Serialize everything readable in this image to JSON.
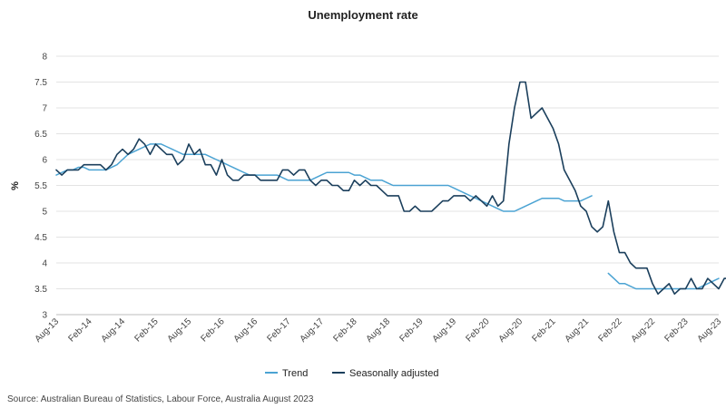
{
  "chart_data": {
    "type": "line",
    "title": "Unemployment rate",
    "ylabel": "%",
    "xlabel": "",
    "ylim": [
      3,
      8
    ],
    "yticks": [
      3,
      3.5,
      4,
      4.5,
      5,
      5.5,
      6,
      6.5,
      7,
      7.5,
      8
    ],
    "ytick_labels": [
      "3",
      "3.5",
      "4",
      "4.5",
      "5",
      "5.5",
      "6",
      "6.5",
      "7",
      "7.5",
      "8"
    ],
    "x_start": "Aug-13",
    "x_end": "Aug-23",
    "xtick_labels": [
      "Aug-13",
      "Feb-14",
      "Aug-14",
      "Feb-15",
      "Aug-15",
      "Feb-16",
      "Aug-16",
      "Feb-17",
      "Aug-17",
      "Feb-18",
      "Aug-18",
      "Feb-19",
      "Aug-19",
      "Feb-20",
      "Aug-20",
      "Feb-21",
      "Aug-21",
      "Feb-22",
      "Aug-22",
      "Feb-23",
      "Aug-23"
    ],
    "grid": true,
    "legend_position": "bottom-center",
    "source": "Source: Australian Bureau of Statistics, Labour Force, Australia August 2023",
    "series": [
      {
        "name": "Trend",
        "color": "#4ba3d3",
        "segments": [
          {
            "start": "Aug-13",
            "values": [
              5.7,
              5.75,
              5.8,
              5.8,
              5.85,
              5.85,
              5.8,
              5.8,
              5.8,
              5.8,
              5.85,
              5.9,
              6.0,
              6.1,
              6.15,
              6.2,
              6.25,
              6.3,
              6.3,
              6.3,
              6.25,
              6.2,
              6.15,
              6.1,
              6.1,
              6.1,
              6.1,
              6.1,
              6.05,
              6.0,
              5.95,
              5.9,
              5.85,
              5.8,
              5.75,
              5.7,
              5.7,
              5.7,
              5.7,
              5.7,
              5.7,
              5.65,
              5.6,
              5.6,
              5.6,
              5.6,
              5.6,
              5.65,
              5.7,
              5.75,
              5.75,
              5.75,
              5.75,
              5.75,
              5.7,
              5.7,
              5.65,
              5.6,
              5.6,
              5.6,
              5.55,
              5.5,
              5.5,
              5.5,
              5.5,
              5.5,
              5.5,
              5.5,
              5.5,
              5.5,
              5.5,
              5.5,
              5.45,
              5.4,
              5.35,
              5.3,
              5.25,
              5.2,
              5.15,
              5.1,
              5.05,
              5.0,
              5.0,
              5.0,
              5.05,
              5.1,
              5.15,
              5.2,
              5.25,
              5.25,
              5.25,
              5.25,
              5.2,
              5.2,
              5.2,
              5.2,
              5.25,
              5.3
            ]
          },
          {
            "start": "Dec-21",
            "values": [
              3.8,
              3.7,
              3.6,
              3.6,
              3.55,
              3.5,
              3.5,
              3.5,
              3.5,
              3.5,
              3.5,
              3.5,
              3.5,
              3.5,
              3.5,
              3.5,
              3.5,
              3.55,
              3.6,
              3.65,
              3.7
            ]
          }
        ]
      },
      {
        "name": "Seasonally adjusted",
        "color": "#1b3f5c",
        "segments": [
          {
            "start": "Aug-13",
            "values": [
              5.8,
              5.7,
              5.8,
              5.8,
              5.8,
              5.9,
              5.9,
              5.9,
              5.9,
              5.8,
              5.9,
              6.1,
              6.2,
              6.1,
              6.2,
              6.4,
              6.3,
              6.1,
              6.3,
              6.2,
              6.1,
              6.1,
              5.9,
              6.0,
              6.3,
              6.1,
              6.2,
              5.9,
              5.9,
              5.7,
              6.0,
              5.7,
              5.6,
              5.6,
              5.7,
              5.7,
              5.7,
              5.6,
              5.6,
              5.6,
              5.6,
              5.8,
              5.8,
              5.7,
              5.8,
              5.8,
              5.6,
              5.5,
              5.6,
              5.6,
              5.5,
              5.5,
              5.4,
              5.4,
              5.6,
              5.5,
              5.6,
              5.5,
              5.5,
              5.4,
              5.3,
              5.3,
              5.3,
              5.0,
              5.0,
              5.1,
              5.0,
              5.0,
              5.0,
              5.1,
              5.2,
              5.2,
              5.3,
              5.3,
              5.3,
              5.2,
              5.3,
              5.2,
              5.1,
              5.3,
              5.1,
              5.2,
              6.3,
              7.0,
              7.5,
              7.5,
              6.8,
              6.9,
              7.0,
              6.8,
              6.6,
              6.3,
              5.8,
              5.6,
              5.4,
              5.1,
              5.0,
              4.7,
              4.6,
              4.7,
              5.2,
              4.6,
              4.2,
              4.2,
              4.0,
              3.9,
              3.9,
              3.9,
              3.6,
              3.4,
              3.5,
              3.6,
              3.4,
              3.5,
              3.5,
              3.7,
              3.5,
              3.5,
              3.7,
              3.6,
              3.5,
              3.7,
              3.7
            ]
          }
        ]
      }
    ]
  }
}
